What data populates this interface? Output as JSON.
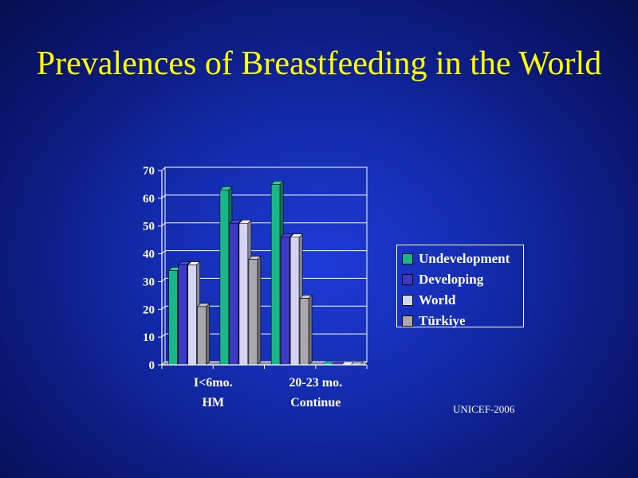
{
  "slide": {
    "title": "Prevalences of Breastfeeding in the World",
    "source": "UNICEF-2006"
  },
  "colors": {
    "Undevelopment": "#19b68a",
    "Developing": "#3b3bc4",
    "World": "#d3d3f2",
    "Türkiye": "#a9a9ad",
    "axis_text": "#ffffff",
    "grid": "#ffffff"
  },
  "chart_data": {
    "type": "bar",
    "style": "3d-clustered",
    "categories": [
      [
        "I<6mo.",
        "HM"
      ],
      [
        "",
        ""
      ],
      [
        "20-23 mo.",
        "Continue"
      ],
      [
        "",
        ""
      ]
    ],
    "series": [
      {
        "name": "Undevelopment",
        "values": [
          34,
          63,
          65,
          0
        ]
      },
      {
        "name": "Developing",
        "values": [
          36,
          51,
          46,
          0
        ]
      },
      {
        "name": "World",
        "values": [
          36,
          51,
          46,
          0
        ]
      },
      {
        "name": "Türkiye",
        "values": [
          21,
          38,
          24,
          0
        ]
      }
    ],
    "ylim": [
      0,
      70
    ],
    "yticks": [
      0,
      10,
      20,
      30,
      40,
      50,
      60,
      70
    ],
    "grid": true,
    "legend_position": "right"
  }
}
